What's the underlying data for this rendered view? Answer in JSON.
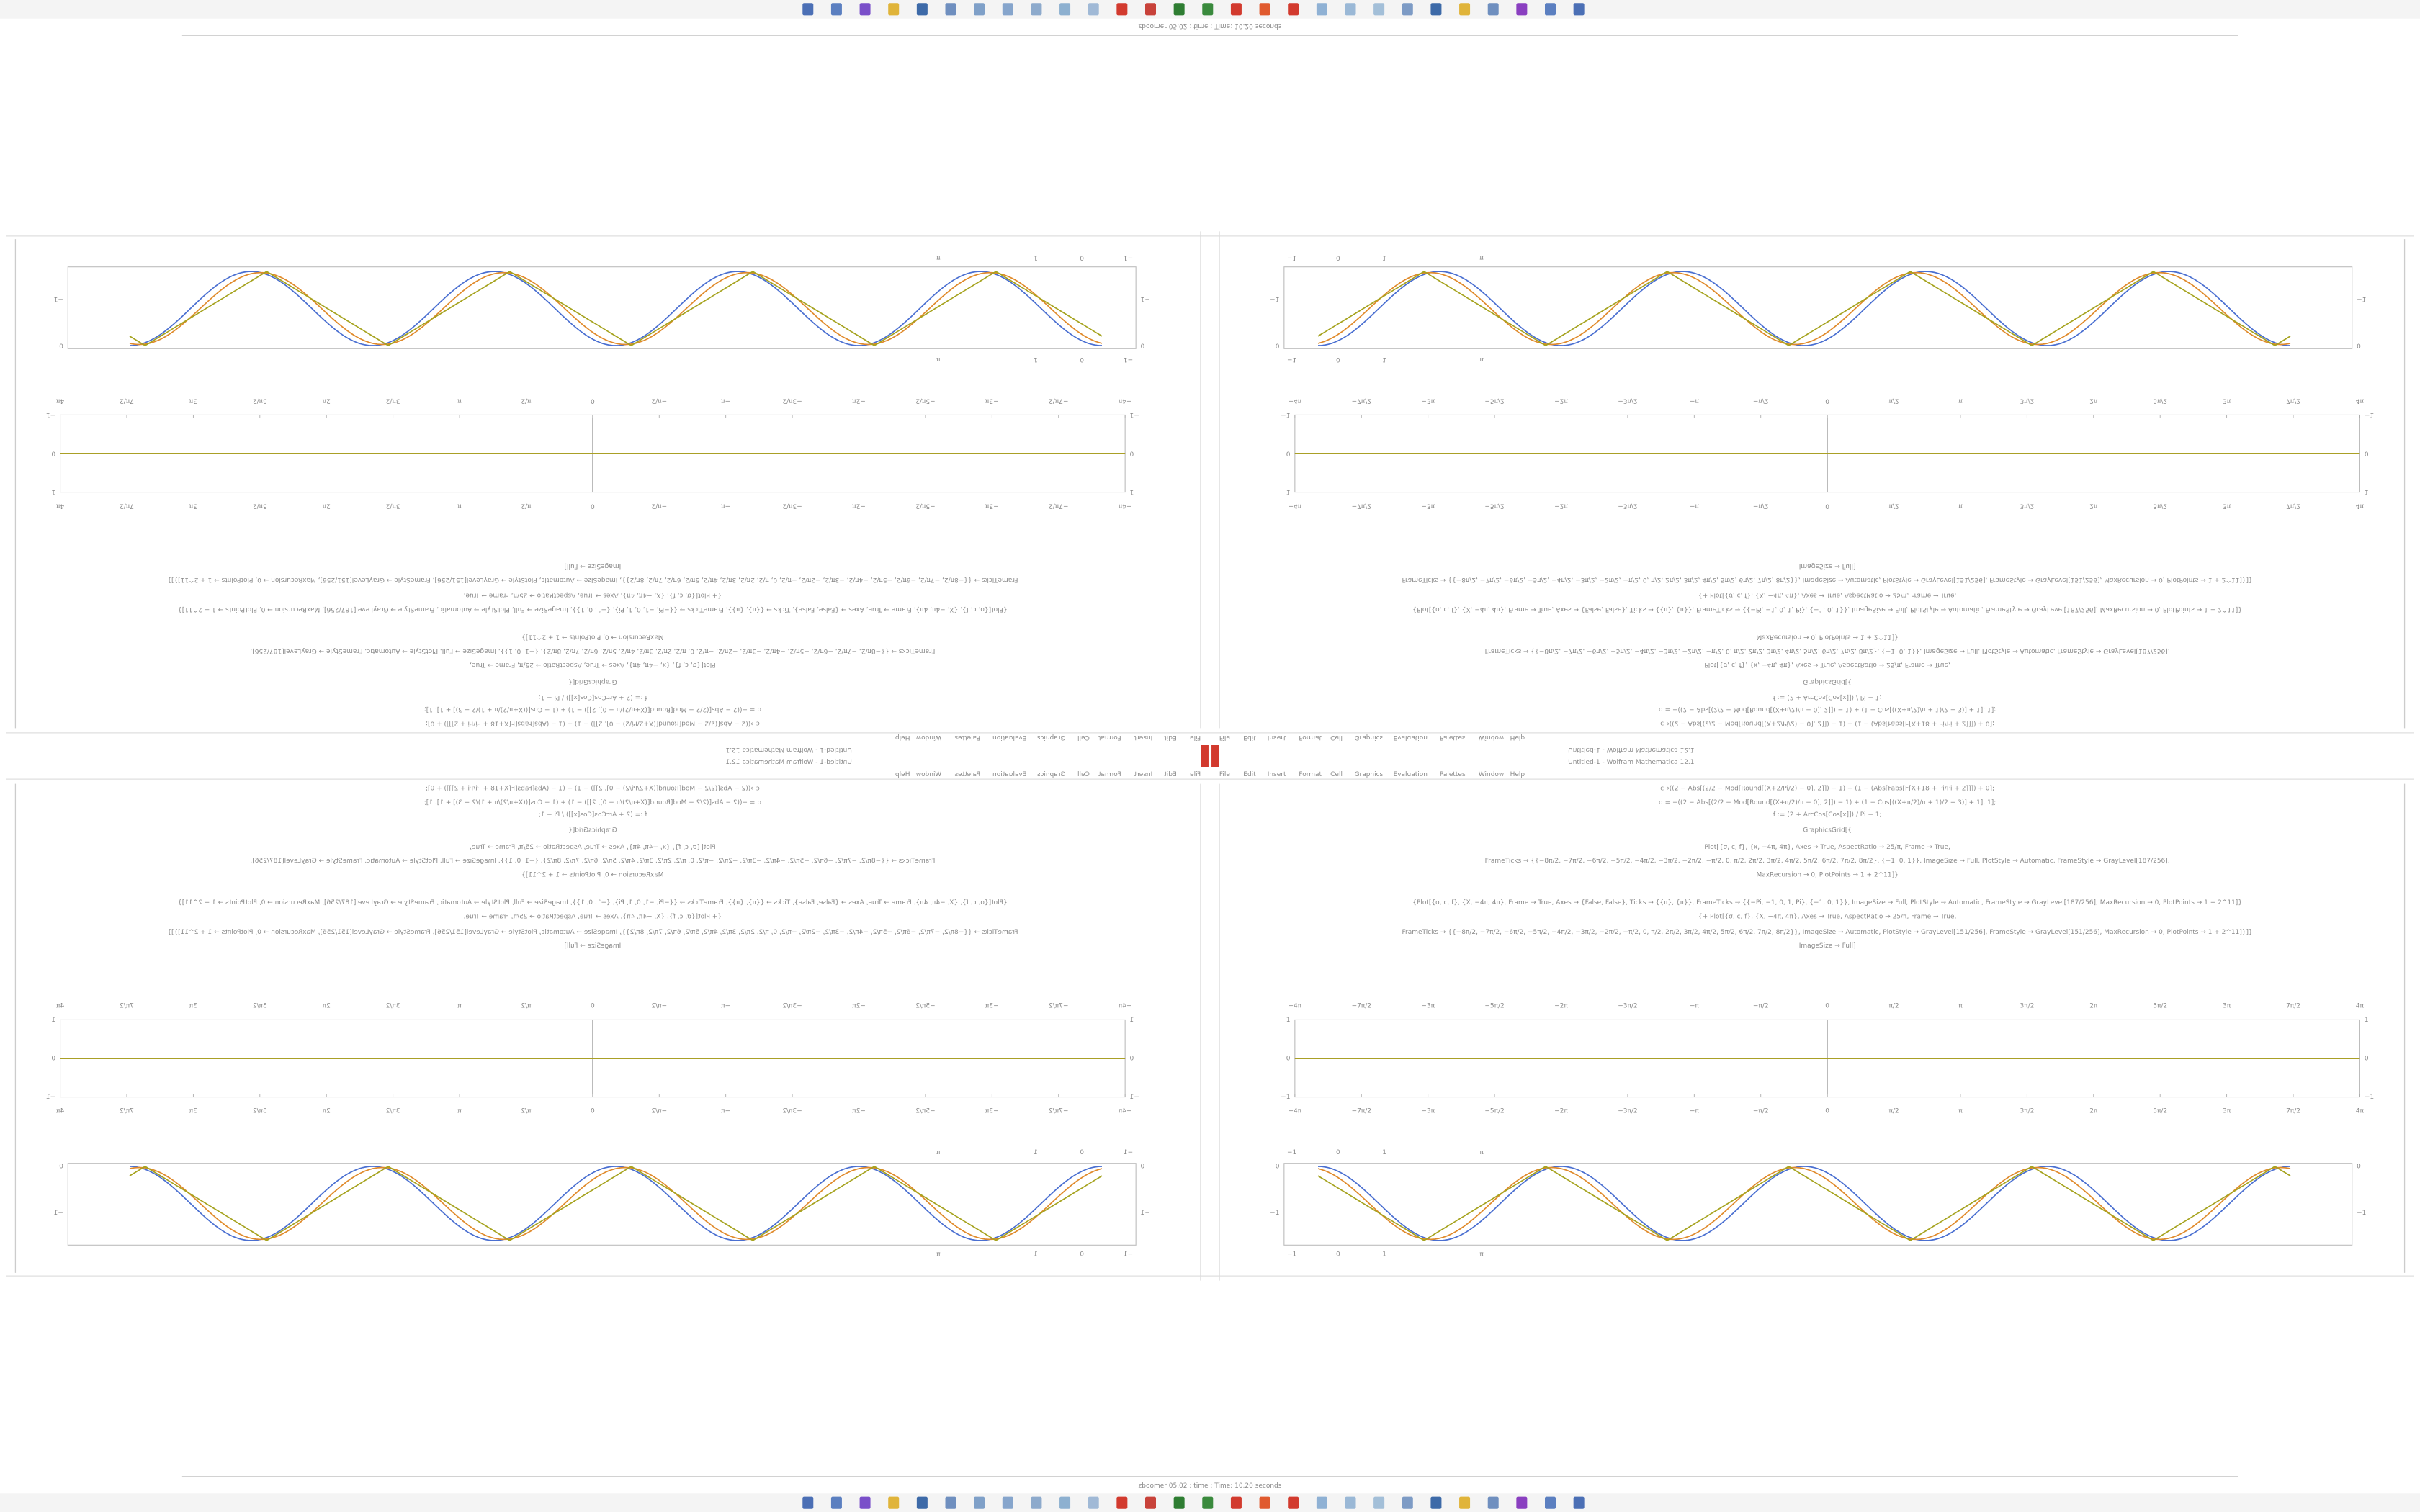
{
  "window": {
    "title": "Untitled-1 - Wolfram Mathematica 12.1",
    "menu": [
      "File",
      "Edit",
      "Insert",
      "Format",
      "Cell",
      "Graphics",
      "Evaluation",
      "Palettes",
      "Window",
      "Help"
    ],
    "status": "zboomer 05.02 ; time ; Time: 10.20 seconds"
  },
  "notebook": {
    "code": [
      "c→((2 − Abs[(2/2 − Mod[Round[(X+2/Pi/2) − 0], 2]]) − 1) + (1 − (Abs[Fabs[F[X+18 + Pi/Pi + 2]]]) + 0];",
      "σ = −((2 − Abs[(2/2 − Mod[Round[(X+π/2)/π − 0], 2]]) − 1) + (1 − Cos[((X+π/2)/π + 1)/2 + 3)] + 1], 1];",
      "f := (2 + ArcCos[Cos[x]]) / Pi − 1;",
      "GraphicsGrid[{",
      "Plot[{σ, c, f}, {x, −4π, 4π}, Axes → True, AspectRatio → 25/π, Frame → True,",
      "FrameTicks → {{−8π/2, −7π/2, −6π/2, −5π/2, −4π/2, −3π/2, −2π/2, −π/2, 0, π/2, 2π/2, 3π/2, 4π/2, 5π/2, 6π/2, 7π/2, 8π/2}, {−1, 0, 1}}, ImageSize → Full, PlotStyle → Automatic, FrameStyle → GrayLevel[187/256],",
      "MaxRecursion → 0, PlotPoints → 1 + 2^11]}",
      "{Plot[{σ, c, f}, {X, −4π, 4π}, Frame → True, Axes → {False, False}, Ticks → {{π}, {π}}, FrameTicks → {{−Pi, −1, 0, 1, Pi}, {−1, 0, 1}}, ImageSize → Full, PlotStyle → Automatic, FrameStyle → GrayLevel[187/256], MaxRecursion → 0, PlotPoints → 1 + 2^11]}",
      "{+ Plot[{σ, c, f}, {X, −4π, 4π}, Axes → True, AspectRatio → 25/π, Frame → True,",
      "FrameTicks → {{−8π/2, −7π/2, −6π/2, −5π/2, −4π/2, −3π/2, −2π/2, −π/2, 0, π/2, 2π/2, 3π/2, 4π/2, 5π/2, 6π/2, 7π/2, 8π/2}}, ImageSize → Automatic, PlotStyle → GrayLevel[151/256], FrameStyle → GrayLevel[151/256], MaxRecursion → 0, PlotPoints → 1 + 2^11]}]}",
      "ImageSize → Full]"
    ],
    "plot_wide": {
      "xticks": [
        "−4π",
        "−7π/2",
        "−3π",
        "−5π/2",
        "−2π",
        "−3π/2",
        "−π",
        "−π/2",
        "0",
        "π/2",
        "π",
        "3π/2",
        "2π",
        "5π/2",
        "3π",
        "7π/2",
        "4π"
      ],
      "yticks": [
        "1",
        "0",
        "−1"
      ]
    },
    "plot_narrow": {
      "xticks": [
        "−1",
        "0",
        "1",
        "π"
      ],
      "yticks": [
        "0",
        "−1"
      ]
    }
  }
}
